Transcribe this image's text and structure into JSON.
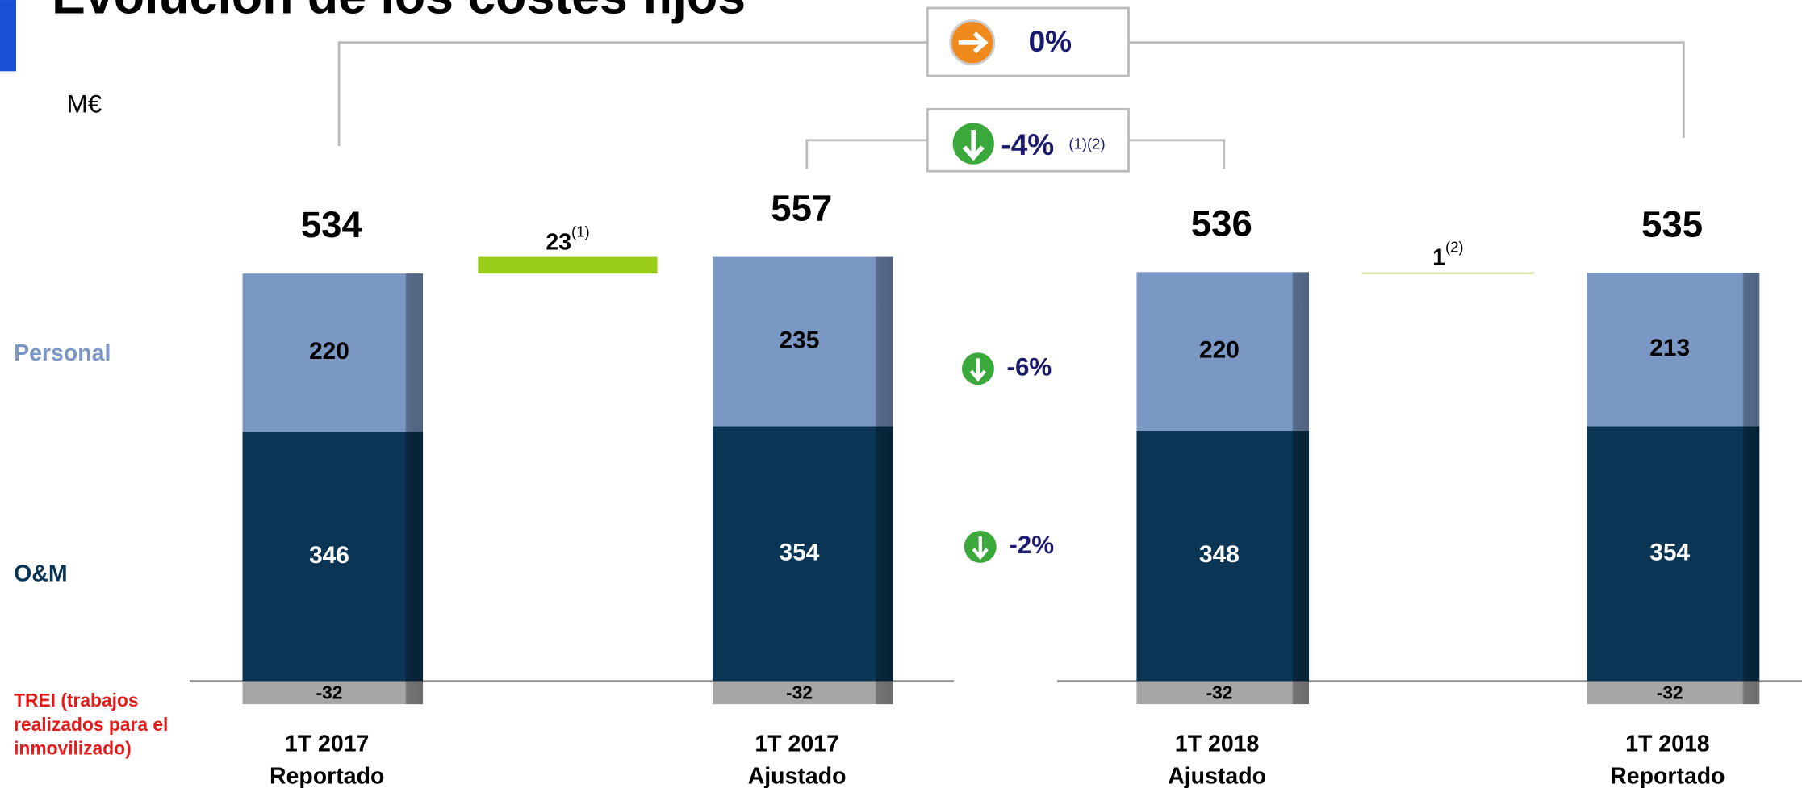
{
  "chart_data": {
    "type": "bar",
    "title": "Evolución de los costes fijos",
    "unit_label": "M€",
    "categories": [
      "1T 2017 Reportado",
      "1T 2017 Ajustado",
      "1T 2018 Ajustado",
      "1T 2018 Reportado"
    ],
    "series": [
      {
        "name": "O&M",
        "color": "#0b3554",
        "values": [
          346,
          354,
          348,
          354
        ]
      },
      {
        "name": "Personal",
        "color": "#7b98c4",
        "values": [
          220,
          235,
          220,
          213
        ]
      },
      {
        "name": "TREI (trabajos realizados para el inmovilizado)",
        "color": "#a6a6a6",
        "values": [
          -32,
          -32,
          -32,
          -32
        ]
      }
    ],
    "totals": [
      534,
      557,
      536,
      535
    ],
    "adjustments": [
      {
        "value": 23,
        "note": "(1)",
        "color": "#9acd1a"
      },
      {
        "value": 1,
        "note": "(2)",
        "color": "#d8e4a8"
      }
    ],
    "changes": {
      "total": "0%",
      "adjusted": "-4%",
      "adjusted_note": "(1)(2)",
      "personal": "-6%",
      "om": "-2%"
    }
  }
}
